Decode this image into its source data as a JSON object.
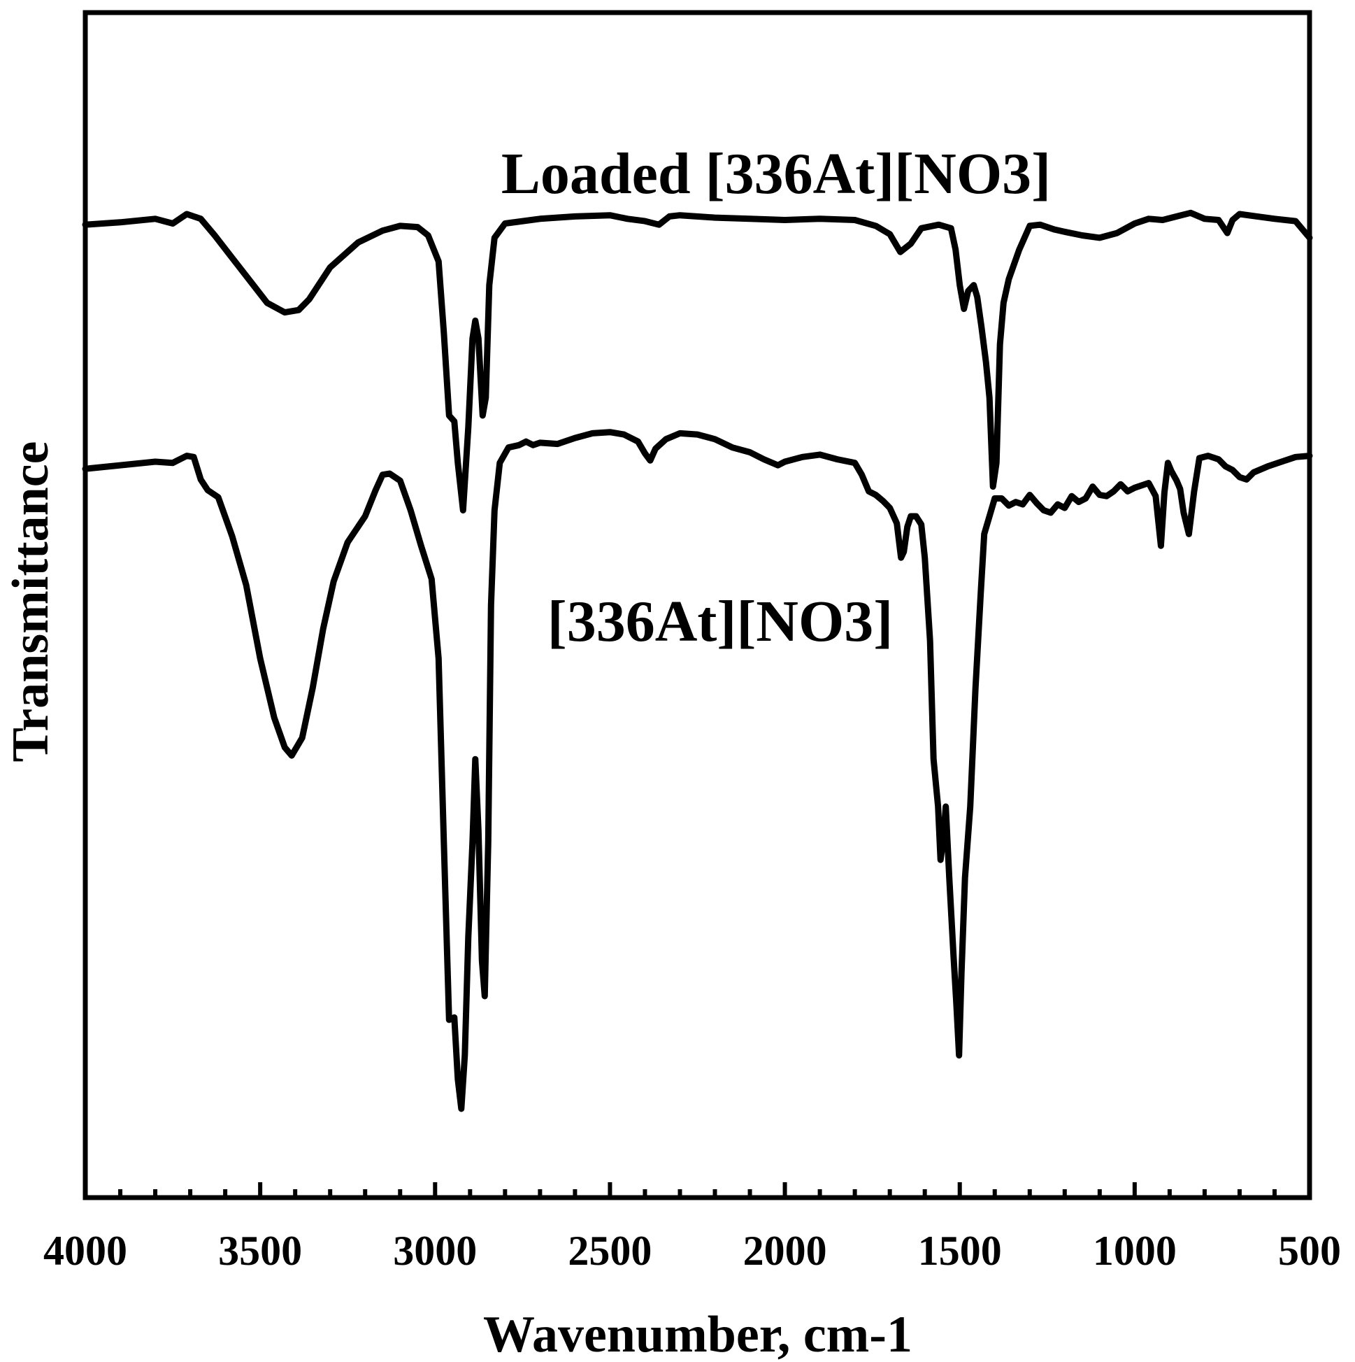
{
  "chart_data": {
    "type": "line",
    "xlabel": "Wavenumber, cm-1",
    "ylabel": "Transmittance",
    "xlim": [
      4000,
      500
    ],
    "x_reversed": true,
    "y_ticks_shown": false,
    "grid": false,
    "x_ticks": [
      4000,
      3500,
      3000,
      2500,
      2000,
      1500,
      1000,
      500
    ],
    "x_tick_labels": [
      "4000",
      "3500",
      "3000",
      "2500",
      "2000",
      "1500",
      "1000",
      "500"
    ],
    "ylim": [
      0,
      100
    ],
    "series": [
      {
        "name": "Loaded [336At][NO3]",
        "color": "#000000",
        "points": [
          [
            4000,
            82.1
          ],
          [
            3900,
            82.3
          ],
          [
            3800,
            82.6
          ],
          [
            3750,
            82.2
          ],
          [
            3710,
            83.0
          ],
          [
            3670,
            82.6
          ],
          [
            3630,
            81.2
          ],
          [
            3580,
            79.3
          ],
          [
            3530,
            77.4
          ],
          [
            3480,
            75.5
          ],
          [
            3430,
            74.7
          ],
          [
            3390,
            74.9
          ],
          [
            3360,
            75.8
          ],
          [
            3300,
            78.5
          ],
          [
            3220,
            80.6
          ],
          [
            3150,
            81.6
          ],
          [
            3100,
            82.0
          ],
          [
            3050,
            81.9
          ],
          [
            3020,
            81.2
          ],
          [
            2990,
            79.0
          ],
          [
            2975,
            73.0
          ],
          [
            2960,
            66.0
          ],
          [
            2945,
            65.5
          ],
          [
            2935,
            62.0
          ],
          [
            2920,
            58.0
          ],
          [
            2905,
            65.0
          ],
          [
            2893,
            72.5
          ],
          [
            2885,
            74.0
          ],
          [
            2876,
            72.5
          ],
          [
            2864,
            66.0
          ],
          [
            2855,
            67.5
          ],
          [
            2845,
            77.0
          ],
          [
            2830,
            81.0
          ],
          [
            2800,
            82.2
          ],
          [
            2700,
            82.6
          ],
          [
            2600,
            82.8
          ],
          [
            2500,
            82.9
          ],
          [
            2450,
            82.6
          ],
          [
            2400,
            82.4
          ],
          [
            2360,
            82.1
          ],
          [
            2330,
            82.8
          ],
          [
            2300,
            82.9
          ],
          [
            2200,
            82.7
          ],
          [
            2100,
            82.6
          ],
          [
            2000,
            82.5
          ],
          [
            1900,
            82.6
          ],
          [
            1800,
            82.5
          ],
          [
            1740,
            82.0
          ],
          [
            1700,
            81.3
          ],
          [
            1670,
            79.8
          ],
          [
            1640,
            80.5
          ],
          [
            1610,
            81.8
          ],
          [
            1560,
            82.1
          ],
          [
            1525,
            81.8
          ],
          [
            1512,
            80.0
          ],
          [
            1500,
            77.0
          ],
          [
            1488,
            75.0
          ],
          [
            1476,
            76.5
          ],
          [
            1460,
            77.0
          ],
          [
            1450,
            76.0
          ],
          [
            1438,
            73.5
          ],
          [
            1425,
            70.5
          ],
          [
            1415,
            67.5
          ],
          [
            1405,
            60.0
          ],
          [
            1395,
            62.0
          ],
          [
            1385,
            72.0
          ],
          [
            1375,
            75.5
          ],
          [
            1360,
            77.5
          ],
          [
            1330,
            80.0
          ],
          [
            1300,
            82.0
          ],
          [
            1270,
            82.1
          ],
          [
            1230,
            81.7
          ],
          [
            1200,
            81.5
          ],
          [
            1150,
            81.2
          ],
          [
            1100,
            81.0
          ],
          [
            1050,
            81.4
          ],
          [
            1000,
            82.2
          ],
          [
            960,
            82.6
          ],
          [
            920,
            82.5
          ],
          [
            880,
            82.8
          ],
          [
            840,
            83.1
          ],
          [
            800,
            82.6
          ],
          [
            760,
            82.5
          ],
          [
            735,
            81.4
          ],
          [
            720,
            82.5
          ],
          [
            700,
            83.0
          ],
          [
            650,
            82.8
          ],
          [
            600,
            82.6
          ],
          [
            540,
            82.4
          ],
          [
            500,
            81.0
          ]
        ]
      },
      {
        "name": "[336At][NO3]",
        "color": "#000000",
        "points": [
          [
            4000,
            61.5
          ],
          [
            3900,
            61.8
          ],
          [
            3800,
            62.1
          ],
          [
            3750,
            62.0
          ],
          [
            3710,
            62.6
          ],
          [
            3690,
            62.5
          ],
          [
            3670,
            60.6
          ],
          [
            3650,
            59.7
          ],
          [
            3620,
            59.1
          ],
          [
            3580,
            55.8
          ],
          [
            3540,
            51.7
          ],
          [
            3500,
            45.5
          ],
          [
            3460,
            40.5
          ],
          [
            3430,
            38.0
          ],
          [
            3410,
            37.3
          ],
          [
            3380,
            38.8
          ],
          [
            3350,
            43.0
          ],
          [
            3320,
            48.0
          ],
          [
            3290,
            52.0
          ],
          [
            3250,
            55.3
          ],
          [
            3200,
            57.5
          ],
          [
            3170,
            59.7
          ],
          [
            3150,
            61.0
          ],
          [
            3130,
            61.1
          ],
          [
            3100,
            60.5
          ],
          [
            3070,
            58.0
          ],
          [
            3040,
            55.0
          ],
          [
            3010,
            52.2
          ],
          [
            2990,
            45.5
          ],
          [
            2975,
            30.0
          ],
          [
            2960,
            15.0
          ],
          [
            2945,
            15.2
          ],
          [
            2935,
            10.0
          ],
          [
            2925,
            7.5
          ],
          [
            2915,
            12.0
          ],
          [
            2905,
            22.0
          ],
          [
            2893,
            30.0
          ],
          [
            2885,
            37.0
          ],
          [
            2876,
            31.0
          ],
          [
            2866,
            20.0
          ],
          [
            2858,
            17.0
          ],
          [
            2848,
            30.0
          ],
          [
            2840,
            50.0
          ],
          [
            2830,
            58.0
          ],
          [
            2815,
            62.0
          ],
          [
            2790,
            63.3
          ],
          [
            2760,
            63.5
          ],
          [
            2740,
            63.8
          ],
          [
            2720,
            63.5
          ],
          [
            2700,
            63.7
          ],
          [
            2650,
            63.6
          ],
          [
            2600,
            64.1
          ],
          [
            2550,
            64.5
          ],
          [
            2500,
            64.6
          ],
          [
            2460,
            64.4
          ],
          [
            2420,
            63.8
          ],
          [
            2400,
            62.8
          ],
          [
            2385,
            62.2
          ],
          [
            2370,
            63.2
          ],
          [
            2340,
            64.0
          ],
          [
            2300,
            64.5
          ],
          [
            2250,
            64.4
          ],
          [
            2200,
            64.0
          ],
          [
            2150,
            63.3
          ],
          [
            2100,
            62.9
          ],
          [
            2060,
            62.3
          ],
          [
            2020,
            61.8
          ],
          [
            2000,
            62.1
          ],
          [
            1950,
            62.5
          ],
          [
            1900,
            62.7
          ],
          [
            1850,
            62.3
          ],
          [
            1800,
            62.0
          ],
          [
            1780,
            61.0
          ],
          [
            1760,
            59.6
          ],
          [
            1740,
            59.3
          ],
          [
            1720,
            58.8
          ],
          [
            1700,
            58.2
          ],
          [
            1680,
            56.9
          ],
          [
            1668,
            54.0
          ],
          [
            1660,
            54.5
          ],
          [
            1650,
            56.6
          ],
          [
            1640,
            57.5
          ],
          [
            1625,
            57.5
          ],
          [
            1610,
            56.8
          ],
          [
            1600,
            54.0
          ],
          [
            1585,
            47.0
          ],
          [
            1575,
            37.0
          ],
          [
            1562,
            33.0
          ],
          [
            1555,
            28.5
          ],
          [
            1548,
            30.0
          ],
          [
            1540,
            33.0
          ],
          [
            1530,
            27.0
          ],
          [
            1518,
            20.5
          ],
          [
            1510,
            16.5
          ],
          [
            1502,
            12.0
          ],
          [
            1495,
            19.0
          ],
          [
            1485,
            27.0
          ],
          [
            1470,
            33.0
          ],
          [
            1455,
            43.0
          ],
          [
            1440,
            51.0
          ],
          [
            1430,
            56.0
          ],
          [
            1415,
            57.5
          ],
          [
            1400,
            59.0
          ],
          [
            1380,
            59.0
          ],
          [
            1360,
            58.4
          ],
          [
            1340,
            58.7
          ],
          [
            1320,
            58.5
          ],
          [
            1300,
            59.3
          ],
          [
            1280,
            58.6
          ],
          [
            1260,
            58.0
          ],
          [
            1240,
            57.8
          ],
          [
            1220,
            58.5
          ],
          [
            1200,
            58.2
          ],
          [
            1180,
            59.2
          ],
          [
            1160,
            58.7
          ],
          [
            1140,
            59.0
          ],
          [
            1120,
            60.0
          ],
          [
            1100,
            59.3
          ],
          [
            1080,
            59.2
          ],
          [
            1060,
            59.6
          ],
          [
            1040,
            60.2
          ],
          [
            1020,
            59.6
          ],
          [
            1000,
            59.9
          ],
          [
            960,
            60.3
          ],
          [
            940,
            59.2
          ],
          [
            925,
            55.0
          ],
          [
            915,
            59.5
          ],
          [
            905,
            62.0
          ],
          [
            895,
            61.3
          ],
          [
            880,
            60.5
          ],
          [
            870,
            59.8
          ],
          [
            860,
            57.8
          ],
          [
            845,
            56.0
          ],
          [
            830,
            59.6
          ],
          [
            815,
            62.4
          ],
          [
            790,
            62.6
          ],
          [
            760,
            62.3
          ],
          [
            740,
            61.7
          ],
          [
            720,
            61.4
          ],
          [
            700,
            60.8
          ],
          [
            680,
            60.6
          ],
          [
            660,
            61.2
          ],
          [
            620,
            61.7
          ],
          [
            580,
            62.1
          ],
          [
            540,
            62.5
          ],
          [
            500,
            62.6
          ]
        ]
      }
    ]
  }
}
